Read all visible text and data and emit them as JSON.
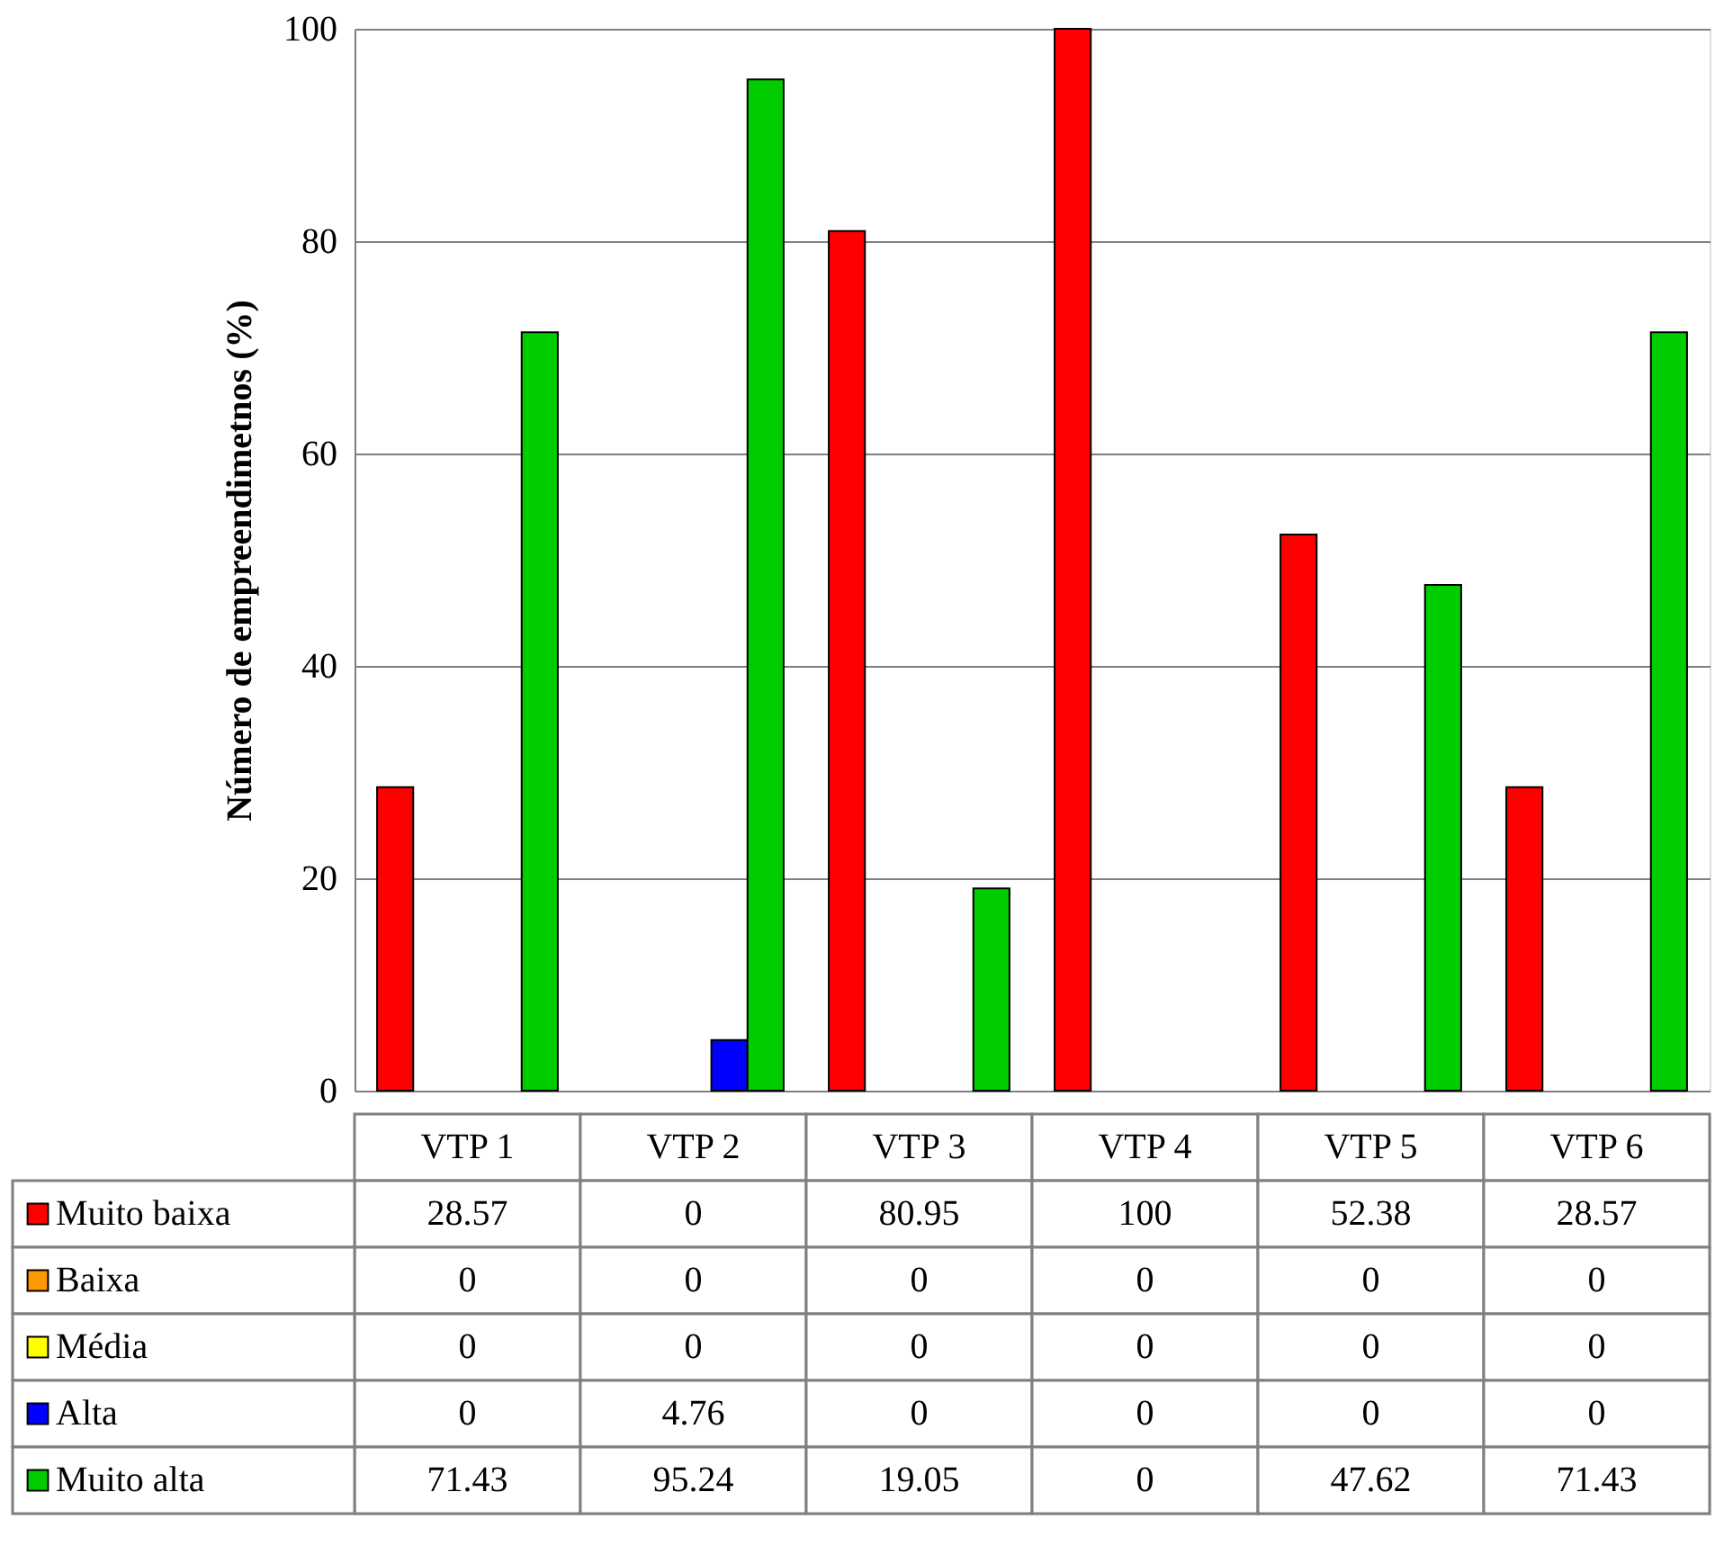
{
  "chart_data": {
    "type": "bar",
    "ylabel": "Número de empreendimetnos (%)",
    "categories": [
      "VTP 1",
      "VTP 2",
      "VTP 3",
      "VTP 4",
      "VTP 5",
      "VTP 6"
    ],
    "series": [
      {
        "name": "Muito baixa",
        "color": "#ff0000",
        "values": [
          28.57,
          0,
          80.95,
          100,
          52.38,
          28.57
        ]
      },
      {
        "name": "Baixa",
        "color": "#ff9900",
        "values": [
          0,
          0,
          0,
          0,
          0,
          0
        ]
      },
      {
        "name": "Média",
        "color": "#ffff00",
        "values": [
          0,
          0,
          0,
          0,
          0,
          0
        ]
      },
      {
        "name": "Alta",
        "color": "#0000ff",
        "values": [
          0,
          4.76,
          0,
          0,
          0,
          0
        ]
      },
      {
        "name": "Muito alta",
        "color": "#00cc00",
        "values": [
          71.43,
          95.24,
          19.05,
          0,
          47.62,
          71.43
        ]
      }
    ],
    "ylim": [
      0,
      100
    ],
    "yticks": [
      0,
      20,
      40,
      60,
      80,
      100
    ],
    "grid": "y",
    "legend": "bottom left",
    "data_labels": true
  }
}
